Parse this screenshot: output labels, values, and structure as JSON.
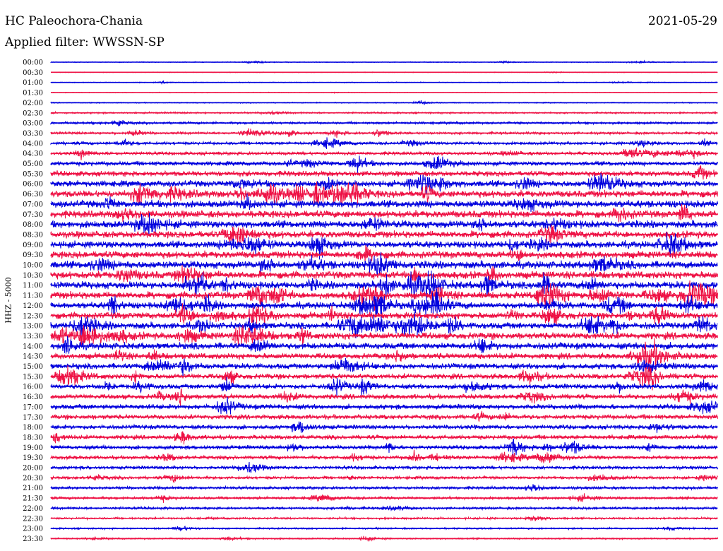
{
  "header": {
    "station": "HC Paleochora-Chania",
    "date": "2021-05-29",
    "filter": "Applied filter: WWSSN-SP",
    "channel": "HHZ - 5000"
  },
  "chart_data": {
    "type": "line",
    "title": "HC Paleochora-Chania",
    "ylabel": "HHZ - 5000",
    "row_labels": [
      "00:00",
      "00:30",
      "01:00",
      "01:30",
      "02:00",
      "02:30",
      "03:00",
      "03:30",
      "04:00",
      "04:30",
      "05:00",
      "05:30",
      "06:00",
      "06:30",
      "07:00",
      "07:30",
      "08:00",
      "08:30",
      "09:00",
      "09:30",
      "10:00",
      "10:30",
      "11:00",
      "11:30",
      "12:00",
      "12:30",
      "13:00",
      "13:30",
      "14:00",
      "14:30",
      "15:00",
      "15:30",
      "16:00",
      "16:30",
      "17:00",
      "17:30",
      "18:00",
      "18:30",
      "19:00",
      "19:30",
      "20:00",
      "20:30",
      "21:00",
      "21:30",
      "22:00",
      "22:30",
      "23:00",
      "23:30"
    ],
    "series_colors": [
      "#0000dd",
      "#ee1144"
    ],
    "noise_level": [
      0.5,
      0.4,
      0.5,
      0.4,
      0.6,
      1.0,
      1.4,
      1.5,
      1.8,
      2.0,
      2.6,
      3.2,
      3.8,
      4.2,
      4.4,
      4.4,
      4.4,
      4.2,
      4.2,
      4.3,
      4.5,
      4.5,
      4.4,
      4.3,
      4.0,
      4.0,
      4.0,
      4.2,
      4.0,
      3.6,
      3.4,
      3.2,
      3.0,
      3.0,
      3.0,
      2.8,
      2.6,
      2.6,
      2.4,
      2.2,
      2.0,
      1.8,
      1.8,
      1.6,
      1.5,
      1.2,
      1.0,
      0.9
    ]
  }
}
